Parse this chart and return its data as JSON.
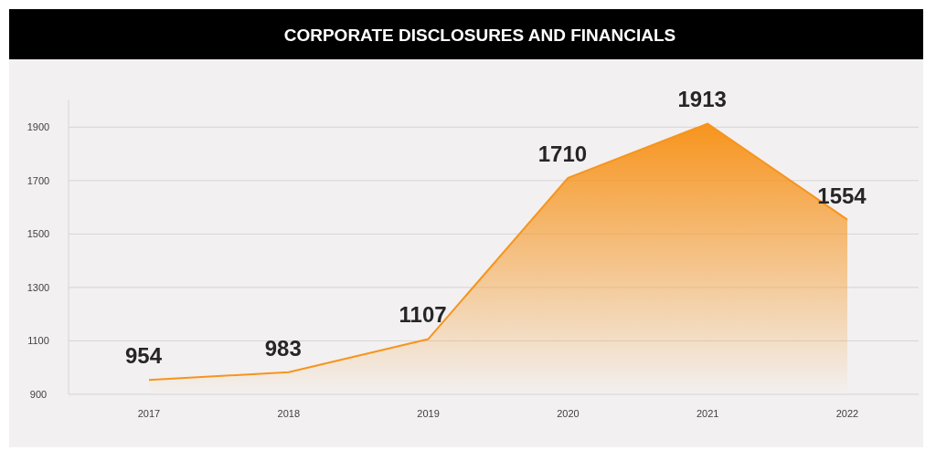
{
  "chart_data": {
    "type": "area",
    "title": "CORPORATE DISCLOSURES AND FINANCIALS",
    "categories": [
      "2017",
      "2018",
      "2019",
      "2020",
      "2021",
      "2022"
    ],
    "series": [
      {
        "color": "#f7941d",
        "values": [
          954,
          983,
          1107,
          1710,
          1913,
          1554
        ]
      }
    ],
    "ylim": [
      900,
      2000
    ],
    "yticks": [
      900,
      1100,
      1300,
      1500,
      1700,
      1900
    ],
    "grid": "y",
    "data_labels": true
  }
}
